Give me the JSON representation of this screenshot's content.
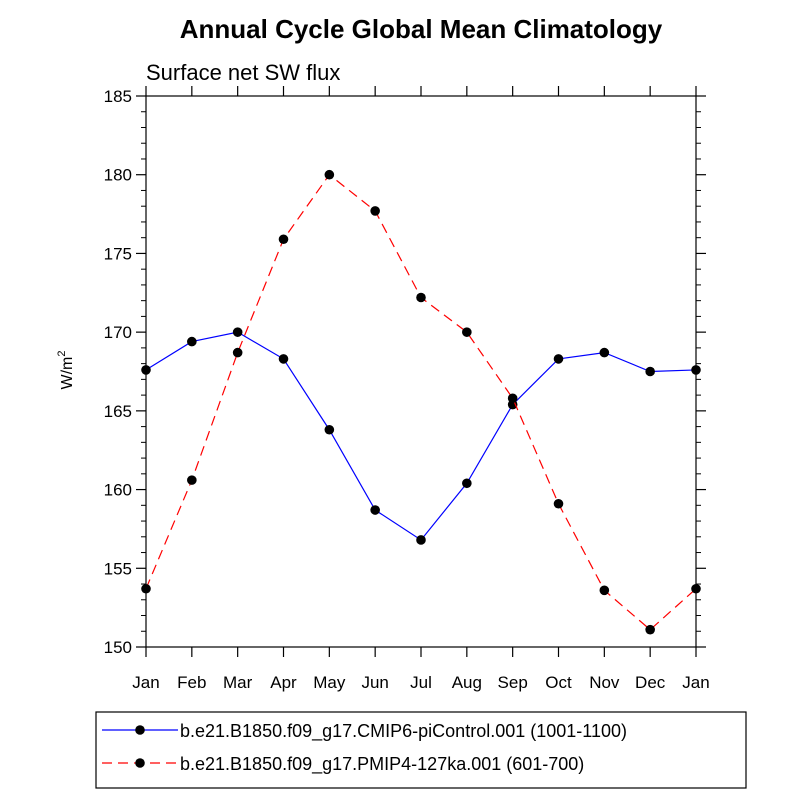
{
  "chart_data": {
    "type": "line",
    "title": "Annual Cycle Global Mean Climatology",
    "subtitle": "Surface net SW flux",
    "ylabel": "W/m",
    "ylabel_sup": "2",
    "categories": [
      "Jan",
      "Feb",
      "Mar",
      "Apr",
      "May",
      "Jun",
      "Jul",
      "Aug",
      "Sep",
      "Oct",
      "Nov",
      "Dec",
      "Jan"
    ],
    "ylim": [
      150,
      185
    ],
    "yticks": [
      150,
      155,
      160,
      165,
      170,
      175,
      180,
      185
    ],
    "series": [
      {
        "name": "b.e21.B1850.f09_g17.CMIP6-piControl.001 (1001-1100)",
        "color": "#0000ff",
        "dash": "solid",
        "values": [
          167.6,
          169.4,
          170.0,
          168.3,
          163.8,
          158.7,
          156.8,
          160.4,
          165.4,
          168.3,
          168.7,
          167.5,
          167.6
        ]
      },
      {
        "name": "b.e21.B1850.f09_g17.PMIP4-127ka.001 (601-700)",
        "color": "#ff0000",
        "dash": "dashed",
        "values": [
          153.7,
          160.6,
          168.7,
          175.9,
          180.0,
          177.7,
          172.2,
          170.0,
          165.8,
          159.1,
          153.6,
          151.1,
          153.7
        ]
      }
    ],
    "marker": "filled-circle",
    "marker_color": "#000000",
    "legend_position": "bottom"
  }
}
